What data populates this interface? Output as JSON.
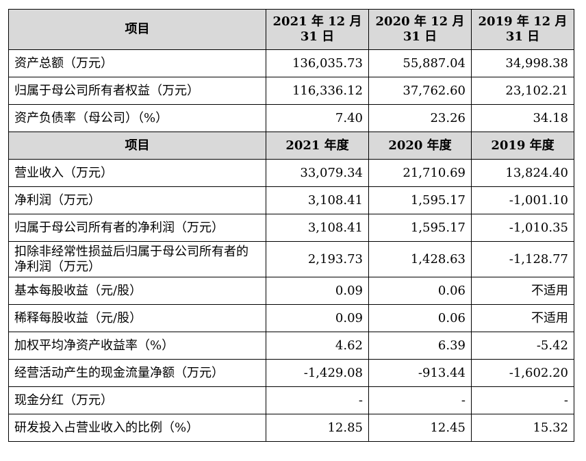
{
  "section1": {
    "header": [
      "项目",
      "2021 年 12 月 31 日",
      "2020 年 12 月 31 日",
      "2019 年 12 月 31 日"
    ],
    "rows": [
      [
        "资产总额（万元）",
        "136,035.73",
        "55,887.04",
        "34,998.38"
      ],
      [
        "归属于母公司所有者权益（万元）",
        "116,336.12",
        "37,762.60",
        "23,102.21"
      ],
      [
        "资产负债率（母公司）（%）",
        "7.40",
        "23.26",
        "34.18"
      ]
    ]
  },
  "section2": {
    "header": [
      "项目",
      "2021 年度",
      "2020 年度",
      "2019 年度"
    ],
    "rows": [
      [
        "营业收入（万元）",
        "33,079.34",
        "21,710.69",
        "13,824.40"
      ],
      [
        "净利润（万元）",
        "3,108.41",
        "1,595.17",
        "-1,001.10"
      ],
      [
        "归属于母公司所有者的净利润（万元）",
        "3,108.41",
        "1,595.17",
        "-1,010.35"
      ],
      [
        "扣除非经常性损益后归属于母公司所有者的净利润（万元）",
        "2,193.73",
        "1,428.63",
        "-1,128.77"
      ],
      [
        "基本每股收益（元/股）",
        "0.09",
        "0.06",
        "不适用"
      ],
      [
        "稀释每股收益（元/股）",
        "0.09",
        "0.06",
        "不适用"
      ],
      [
        "加权平均净资产收益率（%）",
        "4.62",
        "6.39",
        "-5.42"
      ],
      [
        "经营活动产生的现金流量净额（万元）",
        "-1,429.08",
        "-913.44",
        "-1,602.20"
      ],
      [
        "现金分红（万元）",
        "-",
        "-",
        "-"
      ],
      [
        "研发投入占营业收入的比例（%）",
        "12.85",
        "12.45",
        "15.32"
      ]
    ]
  }
}
